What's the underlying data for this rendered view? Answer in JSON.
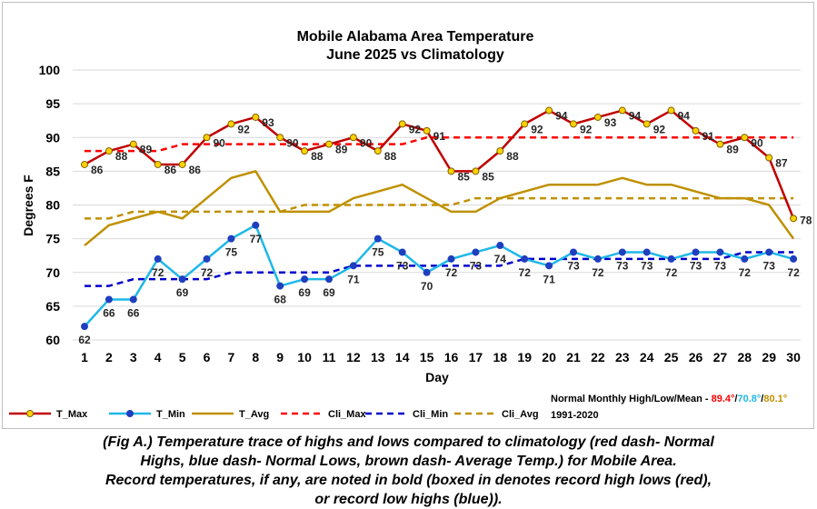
{
  "chart_data": {
    "type": "line",
    "title": "Mobile Alabama Area Temperature",
    "subtitle": "June 2025 vs Climatology",
    "xlabel": "Day",
    "ylabel": "Degrees F",
    "ylim": [
      60,
      100
    ],
    "yticks": [
      60,
      65,
      70,
      75,
      80,
      85,
      90,
      95,
      100
    ],
    "grid": true,
    "legend_position": "bottom",
    "x": [
      1,
      2,
      3,
      4,
      5,
      6,
      7,
      8,
      9,
      10,
      11,
      12,
      13,
      14,
      15,
      16,
      17,
      18,
      19,
      20,
      21,
      22,
      23,
      24,
      25,
      26,
      27,
      28,
      29,
      30
    ],
    "series": [
      {
        "name": "T_Max",
        "color": "#c00000",
        "style": "solid",
        "marker": true,
        "labels": true,
        "values": [
          86,
          88,
          89,
          86,
          86,
          90,
          92,
          93,
          90,
          88,
          89,
          90,
          88,
          92,
          91,
          85,
          85,
          88,
          92,
          94,
          92,
          93,
          94,
          92,
          94,
          91,
          89,
          90,
          87,
          78
        ]
      },
      {
        "name": "T_Min",
        "color": "#1fb8e6",
        "style": "solid",
        "marker": true,
        "labels": true,
        "values": [
          62,
          66,
          66,
          72,
          69,
          72,
          75,
          77,
          68,
          69,
          69,
          71,
          75,
          73,
          70,
          72,
          73,
          74,
          72,
          71,
          73,
          72,
          73,
          73,
          72,
          73,
          73,
          72,
          73,
          72
        ]
      },
      {
        "name": "T_Avg",
        "color": "#bf9000",
        "style": "solid",
        "marker": false,
        "labels": false,
        "values": [
          74,
          77,
          78,
          79,
          78,
          81,
          84,
          85,
          79,
          79,
          79,
          81,
          82,
          83,
          81,
          79,
          79,
          81,
          82,
          83,
          83,
          83,
          84,
          83,
          83,
          82,
          81,
          81,
          80,
          75
        ]
      },
      {
        "name": "Cli_Max",
        "color": "#ff0000",
        "style": "dash",
        "marker": false,
        "labels": false,
        "values": [
          88,
          88,
          88,
          88,
          89,
          89,
          89,
          89,
          89,
          89,
          89,
          89,
          89,
          89,
          90,
          90,
          90,
          90,
          90,
          90,
          90,
          90,
          90,
          90,
          90,
          90,
          90,
          90,
          90,
          90
        ]
      },
      {
        "name": "Cli_Min",
        "color": "#0000cc",
        "style": "dash",
        "marker": false,
        "labels": false,
        "values": [
          68,
          68,
          69,
          69,
          69,
          69,
          70,
          70,
          70,
          70,
          70,
          71,
          71,
          71,
          71,
          71,
          71,
          71,
          72,
          72,
          72,
          72,
          72,
          72,
          72,
          72,
          72,
          73,
          73,
          73
        ]
      },
      {
        "name": "Cli_Avg",
        "color": "#bf9000",
        "style": "dash",
        "marker": false,
        "labels": false,
        "values": [
          78,
          78,
          79,
          79,
          79,
          79,
          79,
          79,
          79,
          80,
          80,
          80,
          80,
          80,
          80,
          80,
          81,
          81,
          81,
          81,
          81,
          81,
          81,
          81,
          81,
          81,
          81,
          81,
          81,
          81
        ]
      }
    ],
    "normals": {
      "text": "Normal Monthly High/Low/Mean - ",
      "high": "89.4°",
      "low": "70.8°",
      "mean": "80.1°",
      "sep": "/",
      "period": "1991-2020",
      "high_color": "#ff0000",
      "low_color": "#1fb8e6",
      "mean_color": "#bf9000"
    }
  },
  "caption": {
    "line1": "(Fig A.) Temperature trace of highs and lows compared to climatology (red dash- Normal",
    "line2": "Highs, blue dash- Normal Lows, brown dash- Average Temp.) for Mobile Area.",
    "line3": "Record temperatures, if any, are noted in bold (boxed in denotes record high lows (red),",
    "line4": "or record low highs (blue))."
  }
}
